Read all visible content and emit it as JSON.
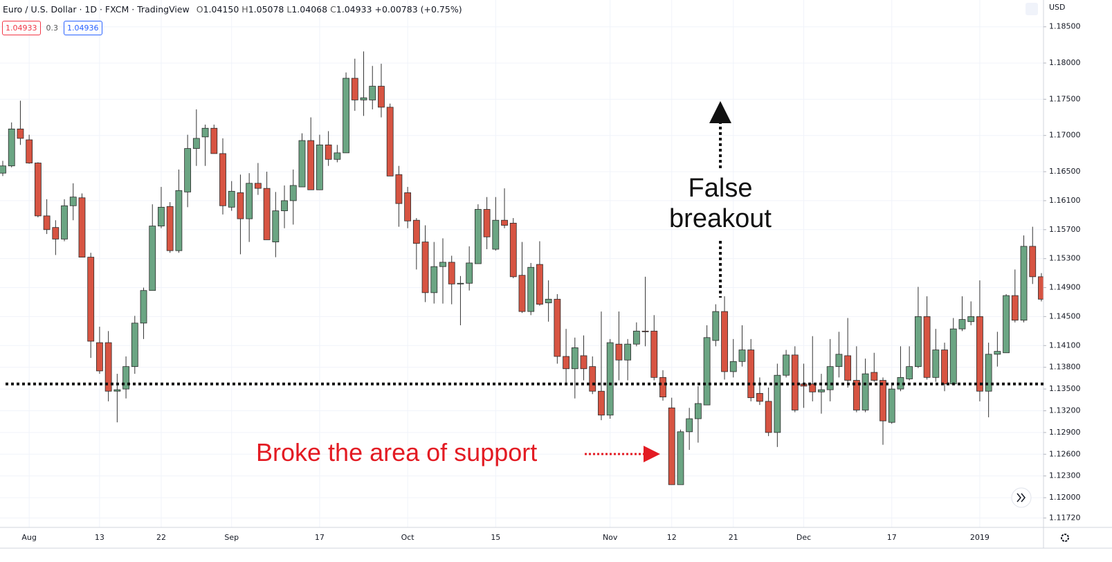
{
  "header": {
    "symbol": "Euro / U.S. Dollar · 1D · FXCM · TradingView",
    "ohlc": [
      {
        "label": "O",
        "value": "1.04150"
      },
      {
        "label": "H",
        "value": "1.05078"
      },
      {
        "label": "L",
        "value": "1.04068"
      },
      {
        "label": "C",
        "value": "1.04933"
      },
      {
        "label": "",
        "value": "+0.00783 (+0.75%)"
      }
    ],
    "sell": "1.04933",
    "spread": "0.3",
    "buy": "1.04936"
  },
  "chart_data": {
    "type": "candlestick",
    "currency": "USD",
    "up_color": "#6ba583",
    "down_color": "#d75442",
    "annotations": {
      "false_breakout": "False breakout",
      "broke_support": "Broke the area of support"
    },
    "support_level": 1.1357,
    "ylim": [
      1.1159,
      1.1887
    ],
    "yticks": [
      {
        "value": 1.185,
        "label": "1.18500"
      },
      {
        "value": 1.18,
        "label": "1.18000"
      },
      {
        "value": 1.175,
        "label": "1.17500"
      },
      {
        "value": 1.17,
        "label": "1.17000"
      },
      {
        "value": 1.165,
        "label": "1.16500"
      },
      {
        "value": 1.161,
        "label": "1.16100"
      },
      {
        "value": 1.157,
        "label": "1.15700"
      },
      {
        "value": 1.153,
        "label": "1.15300"
      },
      {
        "value": 1.149,
        "label": "1.14900"
      },
      {
        "value": 1.145,
        "label": "1.14500"
      },
      {
        "value": 1.141,
        "label": "1.14100"
      },
      {
        "value": 1.138,
        "label": "1.13800"
      },
      {
        "value": 1.135,
        "label": "1.13500"
      },
      {
        "value": 1.132,
        "label": "1.13200"
      },
      {
        "value": 1.129,
        "label": "1.12900"
      },
      {
        "value": 1.126,
        "label": "1.12600"
      },
      {
        "value": 1.123,
        "label": "1.12300"
      },
      {
        "value": 1.12,
        "label": "1.12000"
      },
      {
        "value": 1.1172,
        "label": "1.11720"
      }
    ],
    "grid": true,
    "categories": [
      null,
      null,
      null,
      "Aug",
      null,
      null,
      null,
      null,
      null,
      null,
      null,
      "13",
      null,
      null,
      null,
      null,
      null,
      null,
      "22",
      null,
      null,
      null,
      null,
      null,
      null,
      null,
      "Sep",
      null,
      null,
      null,
      null,
      null,
      null,
      null,
      null,
      null,
      "17",
      null,
      null,
      null,
      null,
      null,
      null,
      null,
      null,
      null,
      "Oct",
      null,
      null,
      null,
      null,
      null,
      null,
      null,
      null,
      null,
      "15",
      null,
      null,
      null,
      null,
      null,
      null,
      null,
      null,
      null,
      null,
      null,
      null,
      "Nov",
      null,
      null,
      null,
      null,
      null,
      null,
      "12",
      null,
      null,
      null,
      null,
      null,
      null,
      "21",
      null,
      null,
      null,
      null,
      null,
      null,
      null,
      "Dec",
      null,
      null,
      null,
      null,
      null,
      null,
      null,
      null,
      null,
      "17",
      null,
      null,
      null,
      null,
      null,
      null,
      null,
      null,
      null,
      "2019",
      null,
      null,
      null,
      null,
      null,
      null,
      null
    ],
    "open": [
      1.1648,
      1.1658,
      1.1709,
      1.1694,
      1.1662,
      1.1589,
      1.1573,
      1.1557,
      1.1603,
      1.1614,
      1.1532,
      1.1414,
      1.1414,
      1.1347,
      1.135,
      1.1381,
      1.1441,
      1.1486,
      1.1575,
      1.1602,
      1.1541,
      1.1622,
      1.1682,
      1.1698,
      1.171,
      1.1675,
      1.1601,
      1.1621,
      1.1585,
      1.1634,
      1.1627,
      1.1553,
      1.1596,
      1.161,
      1.1629,
      1.1693,
      1.1625,
      1.1687,
      1.1667,
      1.1676,
      1.1779,
      1.1749,
      1.1749,
      1.1768,
      1.1739,
      1.1646,
      1.1621,
      1.1583,
      1.1553,
      1.1483,
      1.1519,
      1.1525,
      1.1495,
      1.1496,
      1.1523,
      1.1598,
      1.1543,
      1.1583,
      1.1579,
      1.1507,
      1.1457,
      1.1522,
      1.1469,
      1.1474,
      1.1395,
      1.1378,
      1.1396,
      1.1381,
      1.1347,
      1.1314,
      1.1412,
      1.139,
      1.1412,
      1.143,
      1.143,
      1.1366,
      1.1324,
      1.1218,
      1.1291,
      1.1309,
      1.1328,
      1.1417,
      1.1457,
      1.1374,
      1.1388,
      1.1404,
      1.1344,
      1.1333,
      1.129,
      1.1369,
      1.1397,
      1.1357,
      1.1357,
      1.1346,
      1.1349,
      1.1381,
      1.1396,
      1.1362,
      1.1321,
      1.1373,
      1.1362,
      1.1304,
      1.135,
      1.1364,
      1.1381,
      1.145,
      1.1366,
      1.1404,
      1.1357,
      1.1433,
      1.1443,
      1.145,
      1.1347,
      1.1398,
      1.14,
      1.1479,
      1.1445,
      1.1547,
      1.1505
    ],
    "high": [
      1.1665,
      1.1718,
      1.1748,
      1.1701,
      1.1663,
      1.1612,
      1.1583,
      1.1612,
      1.1634,
      1.162,
      1.1538,
      1.1436,
      1.143,
      1.1371,
      1.1395,
      1.1451,
      1.149,
      1.1605,
      1.1629,
      1.1608,
      1.1653,
      1.1701,
      1.1736,
      1.1715,
      1.1715,
      1.1696,
      1.1637,
      1.1646,
      1.1648,
      1.1662,
      1.165,
      1.1622,
      1.1631,
      1.1653,
      1.1703,
      1.1725,
      1.1701,
      1.1706,
      1.1687,
      1.1787,
      1.1806,
      1.1816,
      1.1796,
      1.1799,
      1.1744,
      1.1658,
      1.1629,
      1.1586,
      1.1576,
      1.1553,
      1.1558,
      1.1534,
      1.1506,
      1.1547,
      1.1605,
      1.1615,
      1.1615,
      1.1627,
      1.1586,
      1.1553,
      1.1524,
      1.1554,
      1.15,
      1.1481,
      1.1433,
      1.1421,
      1.1424,
      1.1395,
      1.1457,
      1.1419,
      1.1457,
      1.1419,
      1.1442,
      1.1505,
      1.1452,
      1.1376,
      1.1338,
      1.1294,
      1.1324,
      1.1354,
      1.1438,
      1.1467,
      1.1478,
      1.1419,
      1.1438,
      1.1419,
      1.1366,
      1.1352,
      1.1385,
      1.1404,
      1.1409,
      1.1385,
      1.1423,
      1.1371,
      1.1419,
      1.1429,
      1.1448,
      1.1409,
      1.1392,
      1.14,
      1.1366,
      1.1357,
      1.1409,
      1.1409,
      1.1491,
      1.1478,
      1.1433,
      1.1414,
      1.1448,
      1.1478,
      1.1471,
      1.15,
      1.1414,
      1.1429,
      1.1481,
      1.1515,
      1.1562,
      1.1574,
      1.151
    ],
    "low": [
      1.1644,
      1.1656,
      1.1687,
      1.1661,
      1.1587,
      1.1564,
      1.1535,
      1.1554,
      1.1583,
      1.1532,
      1.1393,
      1.1371,
      1.1333,
      1.1304,
      1.1337,
      1.1371,
      1.1419,
      1.1486,
      1.1572,
      1.1538,
      1.1538,
      1.1601,
      1.1658,
      1.1658,
      1.1675,
      1.1591,
      1.1596,
      1.1536,
      1.1553,
      1.1618,
      1.1556,
      1.1532,
      1.1572,
      1.1577,
      1.1629,
      1.1625,
      1.1625,
      1.1658,
      1.1663,
      1.1676,
      1.1734,
      1.1727,
      1.1736,
      1.1725,
      1.1644,
      1.1574,
      1.1572,
      1.1515,
      1.147,
      1.1468,
      1.1468,
      1.1467,
      1.1438,
      1.1486,
      1.1523,
      1.1543,
      1.1541,
      1.1572,
      1.1503,
      1.1455,
      1.1452,
      1.1465,
      1.1443,
      1.1385,
      1.1357,
      1.1337,
      1.1362,
      1.1343,
      1.1307,
      1.1309,
      1.1362,
      1.1362,
      1.1409,
      1.1409,
      1.1362,
      1.1334,
      1.1218,
      1.1218,
      1.1266,
      1.1276,
      1.1328,
      1.1409,
      1.1363,
      1.1366,
      1.1381,
      1.1333,
      1.1328,
      1.1285,
      1.127,
      1.1366,
      1.1318,
      1.1324,
      1.1333,
      1.1316,
      1.1333,
      1.1366,
      1.1352,
      1.1318,
      1.1318,
      1.136,
      1.1273,
      1.1302,
      1.1347,
      1.1362,
      1.1379,
      1.1363,
      1.136,
      1.1347,
      1.1357,
      1.143,
      1.1438,
      1.1333,
      1.1311,
      1.1381,
      1.14,
      1.1442,
      1.1442,
      1.1495,
      1.1471
    ],
    "close": [
      1.1658,
      1.1709,
      1.1696,
      1.1662,
      1.1589,
      1.157,
      1.1557,
      1.1603,
      1.1615,
      1.1532,
      1.1416,
      1.1375,
      1.1347,
      1.1349,
      1.1381,
      1.1441,
      1.1486,
      1.1575,
      1.1601,
      1.1541,
      1.1624,
      1.1682,
      1.1696,
      1.171,
      1.1675,
      1.1603,
      1.1623,
      1.1585,
      1.1634,
      1.1627,
      1.1556,
      1.1596,
      1.161,
      1.1631,
      1.1693,
      1.1625,
      1.1687,
      1.1667,
      1.1676,
      1.1779,
      1.1749,
      1.1752,
      1.1768,
      1.1739,
      1.1644,
      1.1606,
      1.1582,
      1.1551,
      1.1483,
      1.1519,
      1.1525,
      1.1495,
      1.1496,
      1.1524,
      1.1598,
      1.156,
      1.1583,
      1.1576,
      1.1505,
      1.1457,
      1.1518,
      1.1467,
      1.1474,
      1.1395,
      1.1378,
      1.1407,
      1.1378,
      1.1347,
      1.1314,
      1.1414,
      1.139,
      1.1412,
      1.143,
      1.1429,
      1.1366,
      1.1339,
      1.1218,
      1.1291,
      1.1309,
      1.133,
      1.1421,
      1.1457,
      1.1374,
      1.1388,
      1.1404,
      1.1338,
      1.1333,
      1.129,
      1.1369,
      1.1397,
      1.1321,
      1.1354,
      1.1346,
      1.1349,
      1.1381,
      1.1398,
      1.1362,
      1.1321,
      1.1371,
      1.1362,
      1.1306,
      1.135,
      1.1366,
      1.1381,
      1.145,
      1.1366,
      1.1404,
      1.1357,
      1.1433,
      1.1446,
      1.145,
      1.1347,
      1.1398,
      1.1402,
      1.1479,
      1.1445,
      1.1547,
      1.1505,
      1.1474
    ]
  }
}
